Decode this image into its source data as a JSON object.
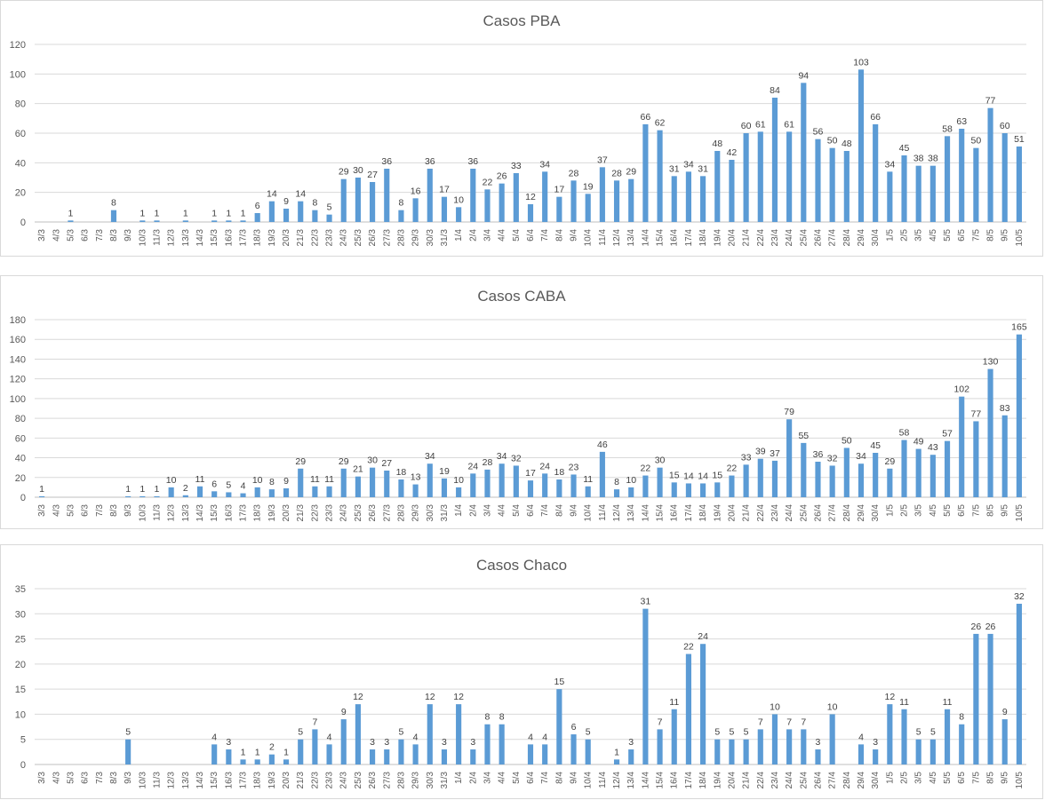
{
  "chart_data": [
    {
      "type": "bar",
      "title": "Casos PBA",
      "xlabel": "",
      "ylabel": "",
      "ylim": [
        0,
        120
      ],
      "yticks": [
        0,
        20,
        40,
        60,
        80,
        100,
        120
      ],
      "grid": true,
      "legend": "none",
      "bar_color": "#5b9bd5",
      "categories": [
        "3/3",
        "4/3",
        "5/3",
        "6/3",
        "7/3",
        "8/3",
        "9/3",
        "10/3",
        "11/3",
        "12/3",
        "13/3",
        "14/3",
        "15/3",
        "16/3",
        "17/3",
        "18/3",
        "19/3",
        "20/3",
        "21/3",
        "22/3",
        "23/3",
        "24/3",
        "25/3",
        "26/3",
        "27/3",
        "28/3",
        "29/3",
        "30/3",
        "31/3",
        "1/4",
        "2/4",
        "3/4",
        "4/4",
        "5/4",
        "6/4",
        "7/4",
        "8/4",
        "9/4",
        "10/4",
        "11/4",
        "12/4",
        "13/4",
        "14/4",
        "15/4",
        "16/4",
        "17/4",
        "18/4",
        "19/4",
        "20/4",
        "21/4",
        "22/4",
        "23/4",
        "24/4",
        "25/4",
        "26/4",
        "27/4",
        "28/4",
        "29/4",
        "30/4",
        "1/5",
        "2/5",
        "3/5",
        "4/5",
        "5/5",
        "6/5",
        "7/5",
        "8/5",
        "9/5",
        "10/5"
      ],
      "values": [
        null,
        null,
        1,
        null,
        null,
        8,
        null,
        1,
        1,
        null,
        1,
        null,
        1,
        1,
        1,
        6,
        14,
        9,
        14,
        8,
        5,
        29,
        30,
        27,
        36,
        8,
        16,
        36,
        17,
        10,
        36,
        22,
        26,
        33,
        12,
        34,
        17,
        28,
        19,
        37,
        28,
        29,
        66,
        62,
        31,
        34,
        31,
        48,
        42,
        60,
        61,
        84,
        61,
        94,
        56,
        50,
        48,
        103,
        66,
        34,
        45,
        38,
        38,
        58,
        63,
        50,
        77,
        60,
        51
      ]
    },
    {
      "type": "bar",
      "title": "Casos CABA",
      "xlabel": "",
      "ylabel": "",
      "ylim": [
        0,
        180
      ],
      "yticks": [
        0,
        20,
        40,
        60,
        80,
        100,
        120,
        140,
        160,
        180
      ],
      "grid": true,
      "legend": "none",
      "bar_color": "#5b9bd5",
      "categories": [
        "3/3",
        "4/3",
        "5/3",
        "6/3",
        "7/3",
        "8/3",
        "9/3",
        "10/3",
        "11/3",
        "12/3",
        "13/3",
        "14/3",
        "15/3",
        "16/3",
        "17/3",
        "18/3",
        "19/3",
        "20/3",
        "21/3",
        "22/3",
        "23/3",
        "24/3",
        "25/3",
        "26/3",
        "27/3",
        "28/3",
        "29/3",
        "30/3",
        "31/3",
        "1/4",
        "2/4",
        "3/4",
        "4/4",
        "5/4",
        "6/4",
        "7/4",
        "8/4",
        "9/4",
        "10/4",
        "11/4",
        "12/4",
        "13/4",
        "14/4",
        "15/4",
        "16/4",
        "17/4",
        "18/4",
        "19/4",
        "20/4",
        "21/4",
        "22/4",
        "23/4",
        "24/4",
        "25/4",
        "26/4",
        "27/4",
        "28/4",
        "29/4",
        "30/4",
        "1/5",
        "2/5",
        "3/5",
        "4/5",
        "5/5",
        "6/5",
        "7/5",
        "8/5",
        "9/5",
        "10/5"
      ],
      "values": [
        1,
        null,
        null,
        null,
        null,
        null,
        1,
        1,
        1,
        10,
        2,
        11,
        6,
        5,
        4,
        10,
        8,
        9,
        29,
        11,
        11,
        29,
        21,
        30,
        27,
        18,
        13,
        34,
        19,
        10,
        24,
        28,
        34,
        32,
        17,
        24,
        18,
        23,
        11,
        46,
        8,
        10,
        22,
        30,
        15,
        14,
        14,
        15,
        22,
        33,
        39,
        37,
        79,
        55,
        36,
        32,
        50,
        34,
        45,
        29,
        58,
        49,
        43,
        57,
        102,
        77,
        130,
        83,
        165
      ]
    },
    {
      "type": "bar",
      "title": "Casos Chaco",
      "xlabel": "",
      "ylabel": "",
      "ylim": [
        0,
        35
      ],
      "yticks": [
        0,
        5,
        10,
        15,
        20,
        25,
        30,
        35
      ],
      "grid": true,
      "legend": "none",
      "bar_color": "#5b9bd5",
      "categories": [
        "3/3",
        "4/3",
        "5/3",
        "6/3",
        "7/3",
        "8/3",
        "9/3",
        "10/3",
        "11/3",
        "12/3",
        "13/3",
        "14/3",
        "15/3",
        "16/3",
        "17/3",
        "18/3",
        "19/3",
        "20/3",
        "21/3",
        "22/3",
        "23/3",
        "24/3",
        "25/3",
        "26/3",
        "27/3",
        "28/3",
        "29/3",
        "30/3",
        "31/3",
        "1/4",
        "2/4",
        "3/4",
        "4/4",
        "5/4",
        "6/4",
        "7/4",
        "8/4",
        "9/4",
        "10/4",
        "11/4",
        "12/4",
        "13/4",
        "14/4",
        "15/4",
        "16/4",
        "17/4",
        "18/4",
        "19/4",
        "20/4",
        "21/4",
        "22/4",
        "23/4",
        "24/4",
        "25/4",
        "26/4",
        "27/4",
        "28/4",
        "29/4",
        "30/4",
        "1/5",
        "2/5",
        "3/5",
        "4/5",
        "5/5",
        "6/5",
        "7/5",
        "8/5",
        "9/5",
        "10/5"
      ],
      "values": [
        null,
        null,
        null,
        null,
        null,
        null,
        5,
        null,
        null,
        null,
        null,
        null,
        4,
        3,
        1,
        1,
        2,
        1,
        5,
        7,
        4,
        9,
        12,
        3,
        3,
        5,
        4,
        12,
        3,
        12,
        3,
        8,
        8,
        null,
        4,
        4,
        15,
        6,
        5,
        null,
        1,
        3,
        31,
        7,
        11,
        22,
        24,
        5,
        5,
        5,
        7,
        10,
        7,
        7,
        3,
        10,
        null,
        4,
        3,
        12,
        11,
        5,
        5,
        11,
        8,
        26,
        26,
        9,
        32
      ]
    }
  ]
}
